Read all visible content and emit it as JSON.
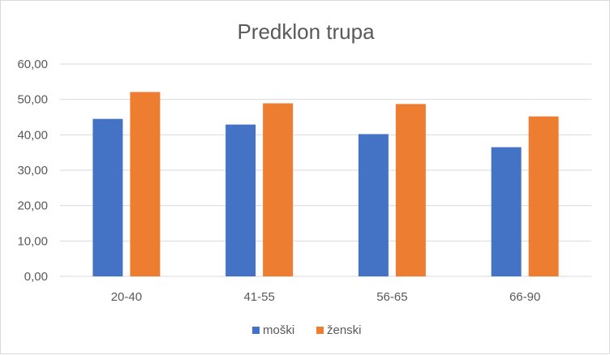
{
  "chart_data": {
    "type": "bar",
    "title": "Predklon trupa",
    "categories": [
      "20-40",
      "41-55",
      "56-65",
      "66-90"
    ],
    "series": [
      {
        "name": "moški",
        "color": "#4472c4",
        "values": [
          44.5,
          42.9,
          40.2,
          36.5
        ]
      },
      {
        "name": "ženski",
        "color": "#ed7d31",
        "values": [
          52.1,
          48.9,
          48.7,
          45.2
        ]
      }
    ],
    "ylim": [
      0,
      60
    ],
    "yticks": [
      "0,00",
      "10,00",
      "20,00",
      "30,00",
      "40,00",
      "50,00",
      "60,00"
    ],
    "grid": true,
    "legend_position": "bottom"
  }
}
